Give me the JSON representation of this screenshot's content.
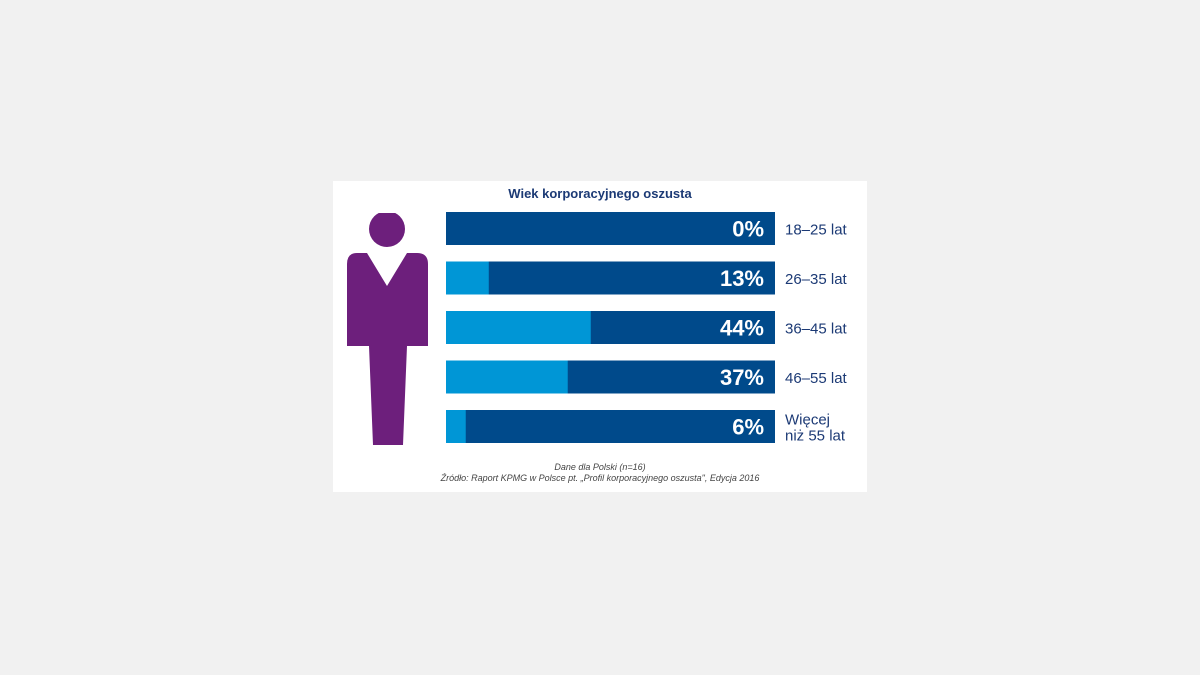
{
  "chart_data": {
    "type": "bar",
    "orientation": "horizontal",
    "stacked_percent": true,
    "title": "Wiek korporacyjnego oszusta",
    "categories": [
      "18–25 lat",
      "26–35 lat",
      "36–45 lat",
      "46–55 lat",
      "Więcej niż 55 lat"
    ],
    "category_lines": [
      [
        "18–25 lat"
      ],
      [
        "26–35 lat"
      ],
      [
        "36–45 lat"
      ],
      [
        "46–55 lat"
      ],
      [
        "Więcej",
        "niż 55 lat"
      ]
    ],
    "values": [
      0,
      13,
      44,
      37,
      6
    ],
    "value_labels": [
      "0%",
      "13%",
      "44%",
      "37%",
      "6%"
    ],
    "xlim": [
      0,
      100
    ],
    "xlabel": "",
    "ylabel": "",
    "grid": false,
    "legend": "none"
  },
  "colors": {
    "bar_track": "#004a8b",
    "bar_value": "#0096d6",
    "figure": "#6d1f7c",
    "category_text": "#1c3a75",
    "title": "#1c3a75"
  },
  "footnote": {
    "line1": "Dane dla Polski (n=16)",
    "line2": "Źródło: Raport KPMG w Polsce pt. „Profil korporacyjnego oszusta\", Edycja 2016"
  },
  "figure_icon": "person-silhouette-icon"
}
